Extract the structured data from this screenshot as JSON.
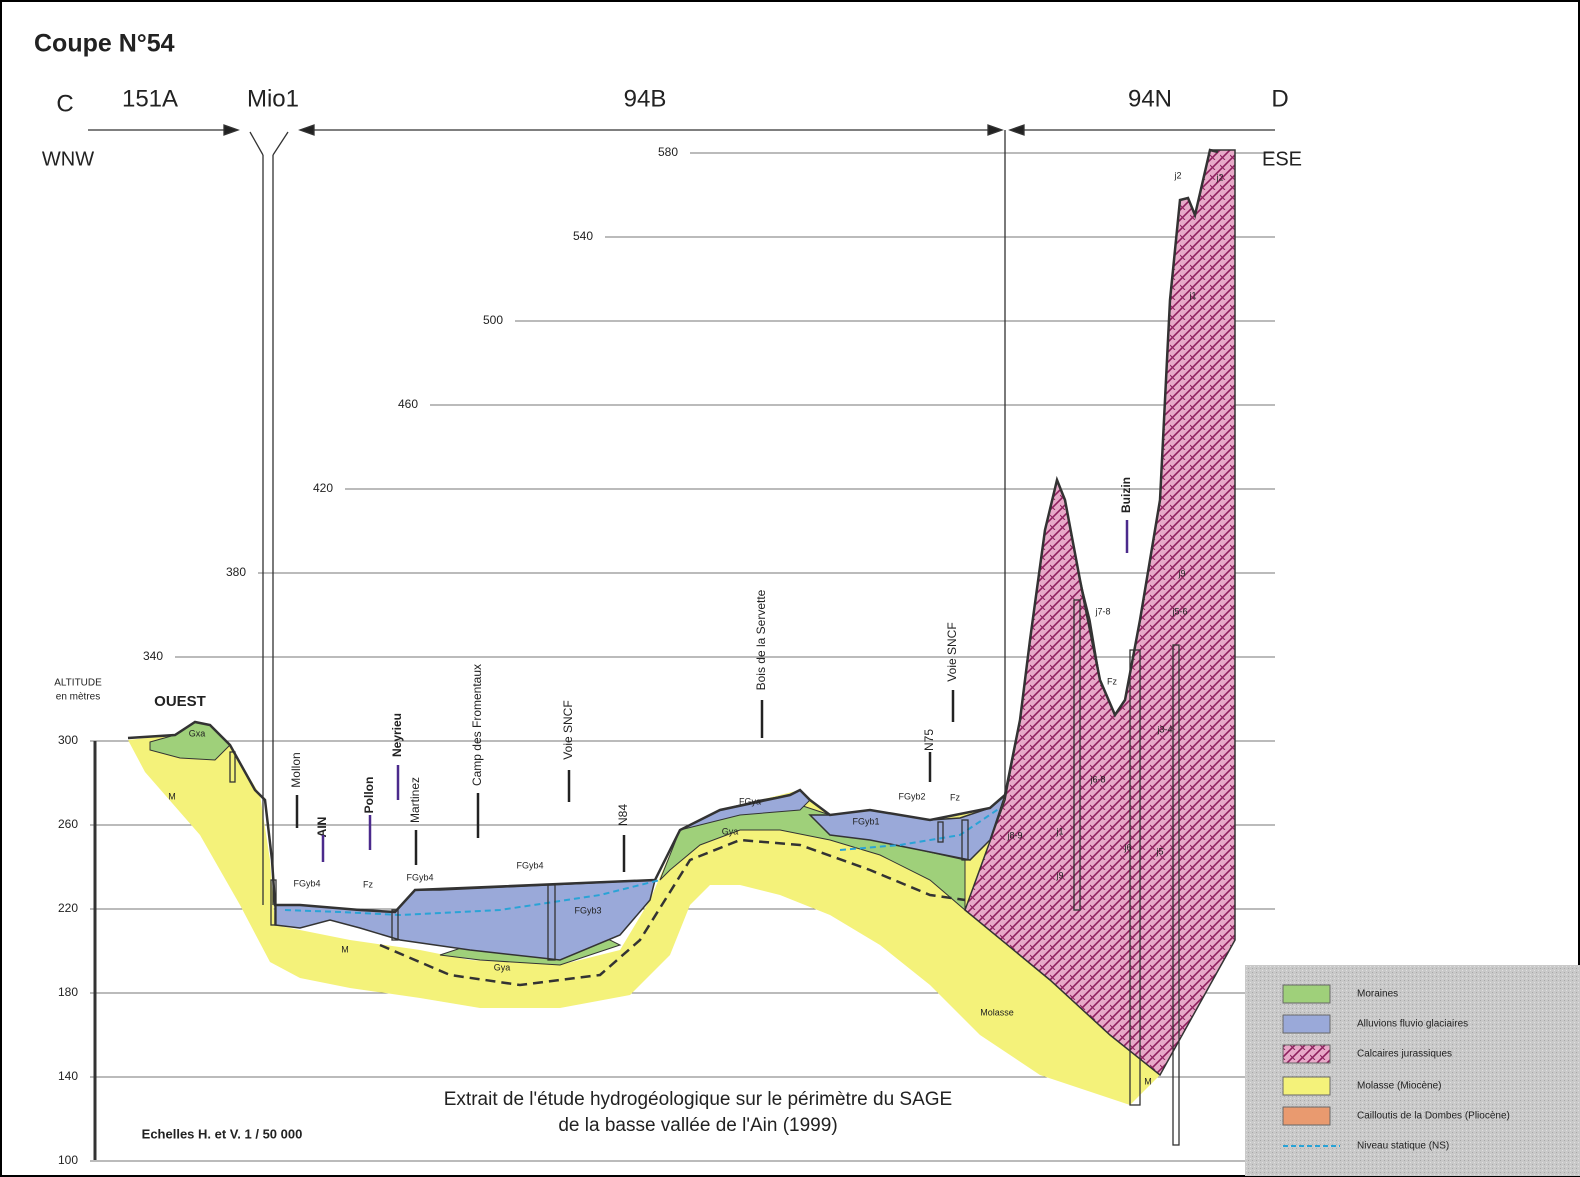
{
  "title": "Coupe N°54",
  "section": {
    "start": "C",
    "end": "D",
    "zones": [
      "151A",
      "Mio1",
      "94B",
      "94N"
    ],
    "directions": [
      "WNW",
      "ESE"
    ]
  },
  "altitude": {
    "label": [
      "ALTITUDE",
      "en mètres"
    ],
    "ticks": [
      580,
      540,
      500,
      460,
      420,
      380,
      340,
      300,
      260,
      220,
      180,
      140,
      100
    ]
  },
  "side_label": "OUEST",
  "places": [
    {
      "label": "Mollon",
      "color": "#222222"
    },
    {
      "label": "AIN",
      "color": "#4b2a8c"
    },
    {
      "label": "Pollon",
      "color": "#4b2a8c"
    },
    {
      "label": "Neyrieu",
      "color": "#4b2a8c"
    },
    {
      "label": "Martinez",
      "color": "#222222"
    },
    {
      "label": "Camp des Fromentaux",
      "color": "#222222"
    },
    {
      "label": "Voie SNCF",
      "color": "#222222"
    },
    {
      "label": "N84",
      "color": "#222222"
    },
    {
      "label": "Bois de la Servette",
      "color": "#222222"
    },
    {
      "label": "N75",
      "color": "#222222"
    },
    {
      "label": "Voie SNCF",
      "color": "#222222"
    },
    {
      "label": "Buizin",
      "color": "#4b2a8c"
    }
  ],
  "formations": [
    "Gxa",
    "M",
    "FGyb4",
    "Fz",
    "FGyb4",
    "M",
    "FGyb4",
    "FGyb3",
    "Gya",
    "Gya",
    "FGya",
    "FGyb1",
    "FGyb2",
    "Fz",
    "Molasse",
    "j2",
    "j2",
    "j1",
    "j9",
    "j5-6",
    "j7-8",
    "Fz",
    "j3-4",
    "j6-8",
    "j8-9",
    "j1",
    "j9",
    "j6",
    "j5",
    "M"
  ],
  "scale": "Echelles H. et V.  1 / 50 000",
  "caption": [
    "Extrait de l'étude hydrogéologique sur le périmètre du SAGE",
    "de la basse vallée de l'Ain (1999)"
  ],
  "legend": [
    "Moraines",
    "Alluvions fluvio glaciaires",
    "Calcaires jurassiques",
    "Molasse (Miocène)",
    "Cailloutis de la Dombes (Pliocène)",
    "Niveau statique (NS)"
  ]
}
